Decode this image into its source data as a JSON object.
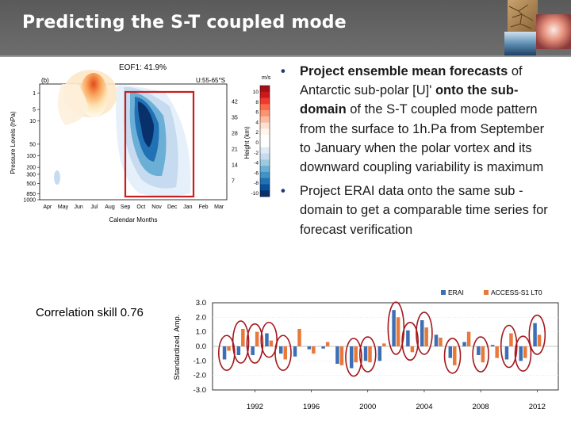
{
  "slide": {
    "title": "Predicting the S-T coupled mode"
  },
  "bullets": [
    {
      "segments": [
        {
          "text": "Project ensemble mean forecasts",
          "bold": true
        },
        {
          "text": " of Antarctic sub-polar [U]' ",
          "bold": false
        },
        {
          "text": "onto the sub-domain",
          "bold": true
        },
        {
          "text": " of the S-T coupled mode pattern from the surface to 1h.Pa from September to January when the polar vortex and its downward coupling variability is maximum",
          "bold": false
        }
      ]
    },
    {
      "segments": [
        {
          "text": "Project ERAI data onto the same sub -domain to get a comparable time series for forecast verification",
          "bold": false
        }
      ]
    }
  ],
  "correlation_label": "Correlation skill 0.76",
  "colors": {
    "erai": "#3d6fb4",
    "access": "#e8793a",
    "circle": "#a4171c",
    "box": "#c81e1e"
  },
  "chart_data": [
    {
      "type": "heatmap",
      "panel_label": "(b)",
      "title": "EOF1: 41.9%",
      "subtitle": "U:55-65°S",
      "xlabel": "Calendar Months",
      "ylabel": "Pressure Levels (hPa)",
      "y2label": "Height (km)",
      "x_categories": [
        "Apr",
        "May",
        "Jun",
        "Jul",
        "Aug",
        "Sep",
        "Oct",
        "Nov",
        "Dec",
        "Jan",
        "Feb",
        "Mar"
      ],
      "y_ticks": [
        "1",
        "5",
        "10",
        "50",
        "100",
        "200",
        "300",
        "500",
        "850",
        "1000"
      ],
      "y2_ticks": [
        "42",
        "35",
        "28",
        "21",
        "14",
        "7"
      ],
      "colorbar_unit": "m/s",
      "colorbar_ticks": [
        10,
        8,
        6,
        4,
        2,
        0,
        -2,
        -4,
        -6,
        -8,
        -10
      ],
      "colorbar_colors": [
        "#a50f15",
        "#cb181d",
        "#ef3b2c",
        "#fb6a4a",
        "#fc9272",
        "#fcbba1",
        "#fee0d2",
        "#fff5eb",
        "#ffffff",
        "#ffffff",
        "#deebf7",
        "#c6dbef",
        "#9ecae1",
        "#6baed6",
        "#4292c6",
        "#2171b5",
        "#08519c",
        "#08306b"
      ],
      "highlight_box_months": [
        "Sep",
        "Jan"
      ]
    },
    {
      "type": "bar",
      "ylabel": "Standardized. Amp.",
      "ylim": [
        -3.0,
        3.0
      ],
      "y_ticks": [
        "3.0",
        "2.0",
        "1.0",
        "0.0",
        "-1.0",
        "-2.0",
        "-3.0"
      ],
      "x_ticks": [
        "1992",
        "1996",
        "2000",
        "2004",
        "2008",
        "2012"
      ],
      "x": [
        1990,
        1991,
        1992,
        1993,
        1994,
        1995,
        1996,
        1997,
        1998,
        1999,
        2000,
        2001,
        2002,
        2003,
        2004,
        2005,
        2006,
        2007,
        2008,
        2009,
        2010,
        2011,
        2012
      ],
      "series": [
        {
          "name": "ERAI",
          "values": [
            -0.9,
            -0.6,
            -0.6,
            0.9,
            -0.5,
            -0.7,
            -0.2,
            -0.15,
            -1.2,
            -1.5,
            -1.0,
            -1.0,
            2.5,
            1.1,
            1.8,
            0.8,
            -0.8,
            0.3,
            -0.6,
            0.1,
            -0.9,
            -1.0,
            1.6
          ]
        },
        {
          "name": "ACCESS-S1 LT0",
          "values": [
            -0.3,
            1.2,
            1.0,
            0.4,
            -0.9,
            1.2,
            -0.5,
            0.3,
            -1.3,
            -1.1,
            -1.1,
            0.2,
            2.0,
            -0.4,
            1.3,
            0.6,
            -1.3,
            1.0,
            -1.1,
            -0.8,
            0.9,
            -0.8,
            0.8
          ]
        }
      ],
      "circled_years": [
        1990,
        1991,
        1992,
        1993,
        1994,
        1999,
        2000,
        2002,
        2003,
        2004,
        2006,
        2008,
        2010,
        2011,
        2012
      ]
    }
  ]
}
